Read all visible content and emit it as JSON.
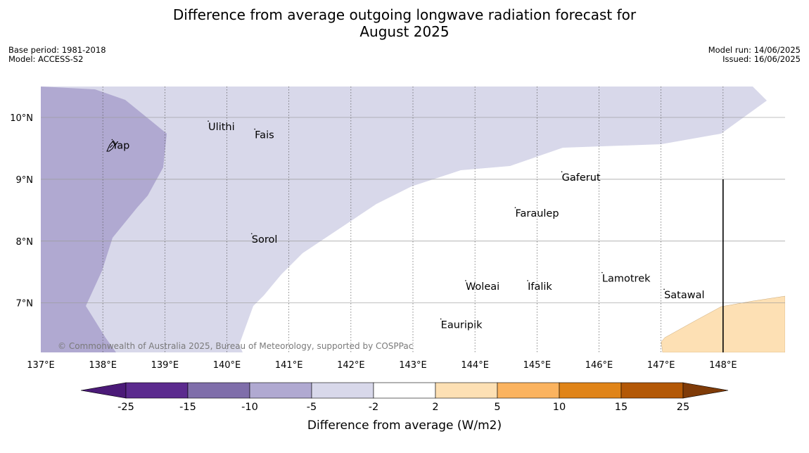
{
  "title": {
    "line1": "Difference from average outgoing longwave radiation forecast for",
    "line2": "August 2025"
  },
  "meta_left": {
    "base_period": "Base period: 1981-2018",
    "model": "Model: ACCESS-S2"
  },
  "meta_right": {
    "model_run": "Model run: 14/06/2025",
    "issued": "Issued: 16/06/2025"
  },
  "map": {
    "lon_range": [
      137,
      149
    ],
    "lat_range": [
      6.2,
      10.5
    ],
    "lon_ticks": [
      "137°E",
      "138°E",
      "139°E",
      "140°E",
      "141°E",
      "142°E",
      "143°E",
      "144°E",
      "145°E",
      "146°E",
      "147°E",
      "148°E"
    ],
    "lat_ticks": [
      "7°N",
      "8°N",
      "9°N",
      "10°N"
    ],
    "places": [
      {
        "name": "Yap",
        "lon": 138.15,
        "lat": 9.55
      },
      {
        "name": "Ulithi",
        "lon": 139.7,
        "lat": 9.85
      },
      {
        "name": "Fais",
        "lon": 140.45,
        "lat": 9.72
      },
      {
        "name": "Gaferut",
        "lon": 145.4,
        "lat": 9.03
      },
      {
        "name": "Faraulep",
        "lon": 144.65,
        "lat": 8.45
      },
      {
        "name": "Sorol",
        "lon": 140.4,
        "lat": 8.03
      },
      {
        "name": "Woleai",
        "lon": 143.85,
        "lat": 7.27
      },
      {
        "name": "Ifalik",
        "lon": 144.85,
        "lat": 7.27
      },
      {
        "name": "Lamotrek",
        "lon": 146.05,
        "lat": 7.4
      },
      {
        "name": "Satawal",
        "lon": 147.05,
        "lat": 7.13
      },
      {
        "name": "Eauripik",
        "lon": 143.45,
        "lat": 6.65
      }
    ],
    "boundary_line": {
      "lon": 148.0,
      "lat_from": 6.2,
      "lat_to": 9.0
    },
    "copyright": "© Commonwealth of Australia 2025, Bureau of Meteorology, supported by COSPPac"
  },
  "colorbar": {
    "levels": [
      "-25",
      "-15",
      "-10",
      "-5",
      "-2",
      "2",
      "5",
      "10",
      "15",
      "25"
    ],
    "colors": [
      "#4b1a78",
      "#5b2a8e",
      "#7f6eaa",
      "#b0a9d1",
      "#d8d8ea",
      "#ffffff",
      "#fde0b4",
      "#fbb35f",
      "#e08418",
      "#b35806",
      "#7f3b08"
    ],
    "label": "Difference from average (W/m2)"
  },
  "colors": {
    "medium_purple": "#b0a9d1",
    "light_purple": "#d8d8ea",
    "light_orange": "#fde0b4",
    "gridline": "#9a9a9a"
  }
}
